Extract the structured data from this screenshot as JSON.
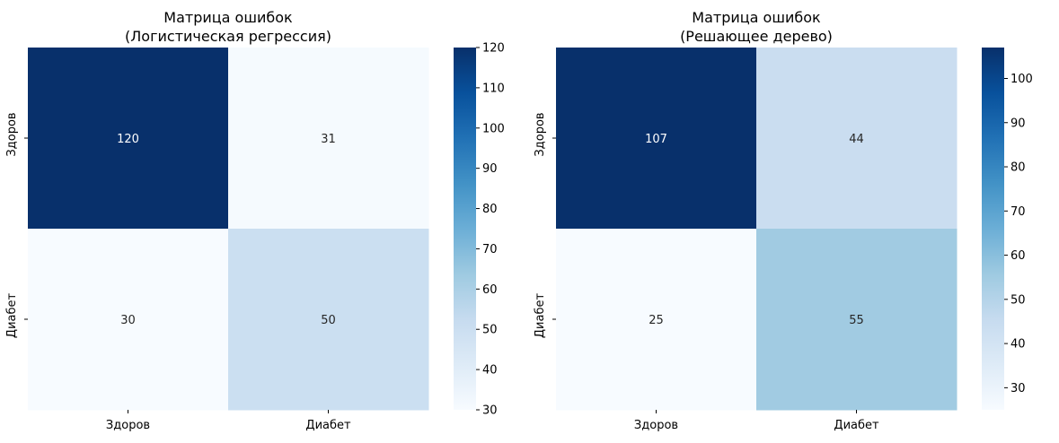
{
  "chart_data": [
    {
      "type": "heatmap",
      "title": "Матрица ошибок\n(Логистическая регрессия)",
      "x_categories": [
        "Здоров",
        "Диабет"
      ],
      "y_categories": [
        "Здоров",
        "Диабет"
      ],
      "matrix": [
        [
          120,
          31
        ],
        [
          30,
          50
        ]
      ],
      "colormap": "Blues",
      "colorbar_range": [
        30,
        120
      ],
      "colorbar_ticks": [
        30,
        40,
        50,
        60,
        70,
        80,
        90,
        100,
        110,
        120
      ]
    },
    {
      "type": "heatmap",
      "title": "Матрица ошибок\n(Решающее дерево)",
      "x_categories": [
        "Здоров",
        "Диабет"
      ],
      "y_categories": [
        "Здоров",
        "Диабет"
      ],
      "matrix": [
        [
          107,
          44
        ],
        [
          25,
          55
        ]
      ],
      "colormap": "Blues",
      "colorbar_range": [
        25,
        107
      ],
      "colorbar_ticks": [
        30,
        40,
        50,
        60,
        70,
        80,
        90,
        100
      ]
    }
  ]
}
